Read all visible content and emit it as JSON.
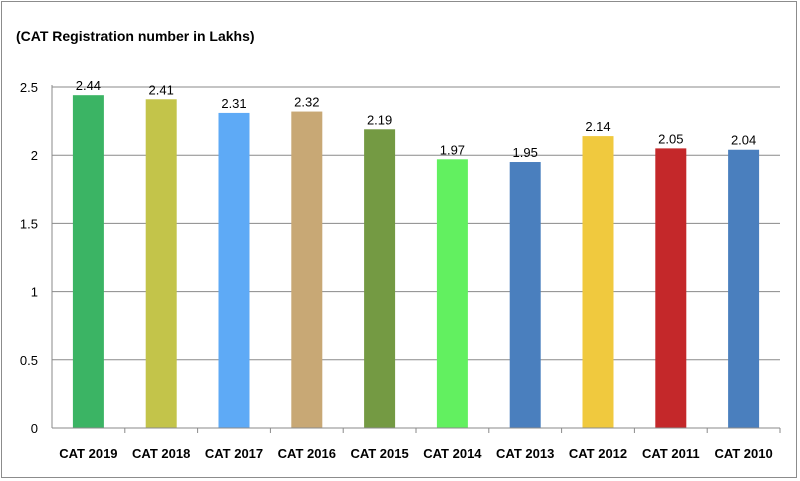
{
  "chart_data": {
    "type": "bar",
    "title": "(CAT Registration number in Lakhs)",
    "xlabel": "",
    "ylabel": "",
    "ylim": [
      0,
      2.5
    ],
    "yticks": [
      "0",
      "0.5",
      "1",
      "1.5",
      "2",
      "2.5"
    ],
    "grid": true,
    "legend": "none",
    "categories": [
      "CAT 2019",
      "CAT 2018",
      "CAT 2017",
      "CAT 2016",
      "CAT 2015",
      "CAT 2014",
      "CAT 2013",
      "CAT 2012",
      "CAT 2011",
      "CAT 2010"
    ],
    "values": [
      2.44,
      2.41,
      2.31,
      2.32,
      2.19,
      1.97,
      1.95,
      2.14,
      2.05,
      2.04
    ],
    "value_labels": [
      "2.44",
      "2.41",
      "2.31",
      "2.32",
      "2.19",
      "1.97",
      "1.95",
      "2.14",
      "2.05",
      "2.04"
    ],
    "colors": [
      "#3bb464",
      "#c3c44a",
      "#5eaaf6",
      "#c8a875",
      "#749a43",
      "#62f060",
      "#4a7fbe",
      "#f0c93e",
      "#c4282a",
      "#4a7fbe"
    ]
  }
}
